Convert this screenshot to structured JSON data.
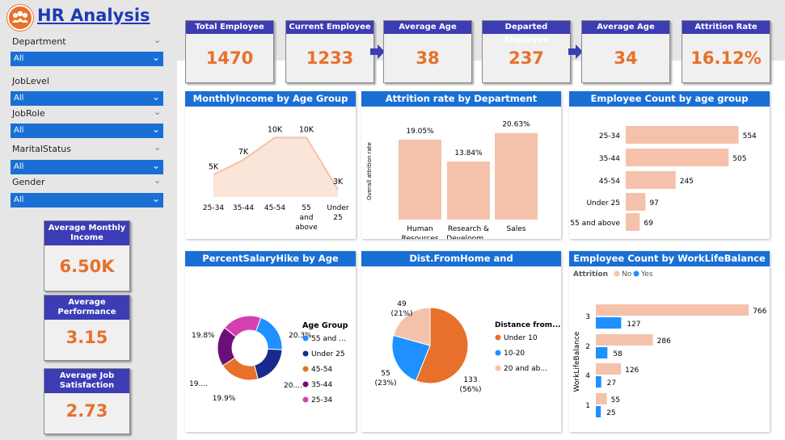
{
  "app": {
    "title": "HR Analysis"
  },
  "filters": [
    {
      "label": "Department",
      "value": "All"
    },
    {
      "label": "JobLevel",
      "value": "All"
    },
    {
      "label": "JobRole",
      "value": "All"
    },
    {
      "label": "MaritalStatus",
      "value": "All"
    },
    {
      "label": "Gender",
      "value": "All"
    }
  ],
  "side_kpis": [
    {
      "label": "Average Monthly Income",
      "value": "6.50K"
    },
    {
      "label": "Average Performance",
      "value": "3.15"
    },
    {
      "label": "Average Job Satisfaction",
      "value": "2.73"
    }
  ],
  "top_kpis": [
    {
      "label": "Total Employee",
      "value": "1470"
    },
    {
      "label": "Current Employee",
      "value": "1233"
    },
    {
      "label": "Average Age",
      "value": "38"
    },
    {
      "label": "Departed Employee",
      "value": "237"
    },
    {
      "label": "Average Age",
      "value": "34"
    },
    {
      "label": "Attrition Rate",
      "value": "16.12%"
    }
  ],
  "colors": {
    "accent": "#e8702a",
    "header": "#1a6fd4",
    "kpi_header": "#3c3cb5",
    "peach": "#f4c2ab",
    "blue": "#1e90ff"
  },
  "chart_data": [
    {
      "id": "monthly-income",
      "type": "area",
      "title": "MonthlyIncome by Age Group",
      "categories": [
        "25-34",
        "35-44",
        "45-54",
        "55 and above",
        "Under 25"
      ],
      "values": [
        5,
        7,
        10,
        10,
        3
      ],
      "labels": [
        "5K",
        "7K",
        "10K",
        "10K",
        "3K"
      ],
      "unit": "K"
    },
    {
      "id": "attrition-dept",
      "type": "bar",
      "title": "Attrition rate by Department",
      "ylabel": "Overall attrition rate",
      "categories": [
        "Human Resources",
        "Research & Developm...",
        "Sales"
      ],
      "values": [
        19.05,
        13.84,
        20.63
      ],
      "labels": [
        "19.05%",
        "13.84%",
        "20.63%"
      ]
    },
    {
      "id": "emp-age",
      "type": "bar",
      "orientation": "horizontal",
      "title": "Employee Count by age group",
      "categories": [
        "25-34",
        "35-44",
        "45-54",
        "Under 25",
        "55 and above"
      ],
      "values": [
        554,
        505,
        245,
        97,
        69
      ]
    },
    {
      "id": "salary-hike",
      "type": "pie",
      "variant": "donut",
      "title": "PercentSalaryHike by Age Group",
      "legend_title": "Age Group",
      "legend": [
        "55 and ...",
        "Under 25",
        "45-54",
        "35-44",
        "25-34"
      ],
      "slices": [
        {
          "name": "55 and above",
          "value": 20.3,
          "label": "20.3%",
          "color": "#1e90ff"
        },
        {
          "name": "Under 25",
          "value": 20.0,
          "label": "20....",
          "color": "#1a2a8c"
        },
        {
          "name": "45-54",
          "value": 19.9,
          "label": "19.9%",
          "color": "#e8702a"
        },
        {
          "name": "35-44",
          "value": 20.0,
          "label": "19....",
          "color": "#6b0f7a"
        },
        {
          "name": "25-34",
          "value": 19.8,
          "label": "19.8%",
          "color": "#d63fb0"
        }
      ]
    },
    {
      "id": "dist-home",
      "type": "pie",
      "title": "Dist.FromHome and DepartedEmployee",
      "legend_title": "Distance from...",
      "legend": [
        "Under 10",
        "10-20",
        "20 and ab..."
      ],
      "slices": [
        {
          "name": "Under 10",
          "value": 133,
          "label": "133",
          "pct": "(56%)",
          "color": "#e8702a"
        },
        {
          "name": "10-20",
          "value": 55,
          "label": "55",
          "pct": "(23%)",
          "color": "#1e90ff"
        },
        {
          "name": "20 and above",
          "value": 49,
          "label": "49",
          "pct": "(21%)",
          "color": "#f4c2ab"
        }
      ]
    },
    {
      "id": "wlb",
      "type": "bar",
      "orientation": "horizontal",
      "title": "Employee Count by WorkLifeBalance",
      "legend_title": "Attrition",
      "ylabel": "WorkLifeBalance",
      "categories": [
        "3",
        "2",
        "4",
        "1"
      ],
      "series": [
        {
          "name": "No",
          "values": [
            766,
            286,
            126,
            55
          ],
          "color": "#f4c2ab"
        },
        {
          "name": "Yes",
          "values": [
            127,
            58,
            27,
            25
          ],
          "color": "#1e90ff"
        }
      ]
    }
  ]
}
